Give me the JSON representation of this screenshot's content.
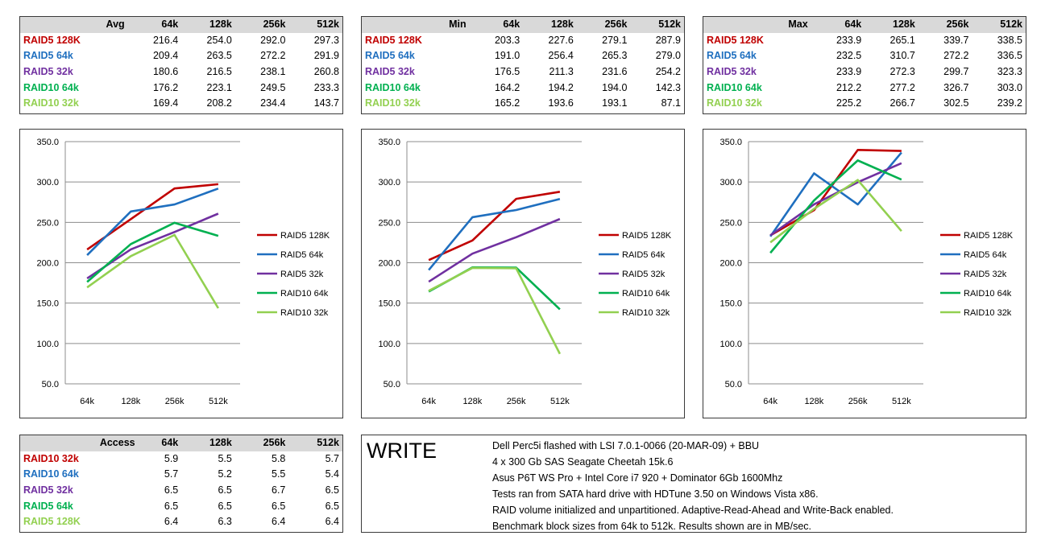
{
  "columns": [
    "64k",
    "128k",
    "256k",
    "512k"
  ],
  "colors": {
    "RAID5 128K": "#c00000",
    "RAID5 64k": "#1f6fbf",
    "RAID5 32k": "#7030a0",
    "RAID10 64k": "#00b050",
    "RAID10 32k": "#92d050"
  },
  "tables": [
    {
      "title": "Avg",
      "columns": [
        "64k",
        "128k",
        "256k",
        "512k"
      ],
      "rows": [
        {
          "label": "RAID5 128K",
          "color": "#c00000",
          "values": [
            "216.4",
            "254.0",
            "292.0",
            "297.3"
          ]
        },
        {
          "label": "RAID5 64k",
          "color": "#1f6fbf",
          "values": [
            "209.4",
            "263.5",
            "272.2",
            "291.9"
          ]
        },
        {
          "label": "RAID5 32k",
          "color": "#7030a0",
          "values": [
            "180.6",
            "216.5",
            "238.1",
            "260.8"
          ]
        },
        {
          "label": "RAID10 64k",
          "color": "#00b050",
          "values": [
            "176.2",
            "223.1",
            "249.5",
            "233.3"
          ]
        },
        {
          "label": "RAID10 32k",
          "color": "#92d050",
          "values": [
            "169.4",
            "208.2",
            "234.4",
            "143.7"
          ]
        }
      ]
    },
    {
      "title": "Min",
      "columns": [
        "64k",
        "128k",
        "256k",
        "512k"
      ],
      "rows": [
        {
          "label": "RAID5 128K",
          "color": "#c00000",
          "values": [
            "203.3",
            "227.6",
            "279.1",
            "287.9"
          ]
        },
        {
          "label": "RAID5 64k",
          "color": "#1f6fbf",
          "values": [
            "191.0",
            "256.4",
            "265.3",
            "279.0"
          ]
        },
        {
          "label": "RAID5 32k",
          "color": "#7030a0",
          "values": [
            "176.5",
            "211.3",
            "231.6",
            "254.2"
          ]
        },
        {
          "label": "RAID10 64k",
          "color": "#00b050",
          "values": [
            "164.2",
            "194.2",
            "194.0",
            "142.3"
          ]
        },
        {
          "label": "RAID10 32k",
          "color": "#92d050",
          "values": [
            "165.2",
            "193.6",
            "193.1",
            "87.1"
          ]
        }
      ]
    },
    {
      "title": "Max",
      "columns": [
        "64k",
        "128k",
        "256k",
        "512k"
      ],
      "rows": [
        {
          "label": "RAID5 128K",
          "color": "#c00000",
          "values": [
            "233.9",
            "265.1",
            "339.7",
            "338.5"
          ]
        },
        {
          "label": "RAID5 64k",
          "color": "#1f6fbf",
          "values": [
            "232.5",
            "310.7",
            "272.2",
            "336.5"
          ]
        },
        {
          "label": "RAID5 32k",
          "color": "#7030a0",
          "values": [
            "233.9",
            "272.3",
            "299.7",
            "323.3"
          ]
        },
        {
          "label": "RAID10 64k",
          "color": "#00b050",
          "values": [
            "212.2",
            "277.2",
            "326.7",
            "303.0"
          ]
        },
        {
          "label": "RAID10 32k",
          "color": "#92d050",
          "values": [
            "225.2",
            "266.7",
            "302.5",
            "239.2"
          ]
        }
      ]
    }
  ],
  "access_table": {
    "title": "Access",
    "columns": [
      "64k",
      "128k",
      "256k",
      "512k"
    ],
    "rows": [
      {
        "label": "RAID10 32k",
        "color": "#c00000",
        "values": [
          "5.9",
          "5.5",
          "5.8",
          "5.7"
        ]
      },
      {
        "label": "RAID10 64k",
        "color": "#1f6fbf",
        "values": [
          "5.7",
          "5.2",
          "5.5",
          "5.4"
        ]
      },
      {
        "label": "RAID5 32k",
        "color": "#7030a0",
        "values": [
          "6.5",
          "6.5",
          "6.7",
          "6.5"
        ]
      },
      {
        "label": "RAID5 64k",
        "color": "#00b050",
        "values": [
          "6.5",
          "6.5",
          "6.5",
          "6.5"
        ]
      },
      {
        "label": "RAID5 128K",
        "color": "#92d050",
        "values": [
          "6.4",
          "6.3",
          "6.4",
          "6.4"
        ]
      }
    ]
  },
  "chart_data": [
    {
      "type": "line",
      "title": "",
      "xlabel": "",
      "ylabel": "",
      "categories": [
        "64k",
        "128k",
        "256k",
        "512k"
      ],
      "ylim": [
        50,
        350
      ],
      "yticks": [
        "50.0",
        "100.0",
        "150.0",
        "200.0",
        "250.0",
        "300.0",
        "350.0"
      ],
      "grid": true,
      "legend": "right",
      "series": [
        {
          "name": "RAID5 128K",
          "color": "#c00000",
          "values": [
            216.4,
            254.0,
            292.0,
            297.3
          ]
        },
        {
          "name": "RAID5 64k",
          "color": "#1f6fbf",
          "values": [
            209.4,
            263.5,
            272.2,
            291.9
          ]
        },
        {
          "name": "RAID5 32k",
          "color": "#7030a0",
          "values": [
            180.6,
            216.5,
            238.1,
            260.8
          ]
        },
        {
          "name": "RAID10 64k",
          "color": "#00b050",
          "values": [
            176.2,
            223.1,
            249.5,
            233.3
          ]
        },
        {
          "name": "RAID10 32k",
          "color": "#92d050",
          "values": [
            169.4,
            208.2,
            234.4,
            143.7
          ]
        }
      ]
    },
    {
      "type": "line",
      "title": "",
      "xlabel": "",
      "ylabel": "",
      "categories": [
        "64k",
        "128k",
        "256k",
        "512k"
      ],
      "ylim": [
        50,
        350
      ],
      "yticks": [
        "50.0",
        "100.0",
        "150.0",
        "200.0",
        "250.0",
        "300.0",
        "350.0"
      ],
      "grid": true,
      "legend": "right",
      "series": [
        {
          "name": "RAID5 128K",
          "color": "#c00000",
          "values": [
            203.3,
            227.6,
            279.1,
            287.9
          ]
        },
        {
          "name": "RAID5 64k",
          "color": "#1f6fbf",
          "values": [
            191.0,
            256.4,
            265.3,
            279.0
          ]
        },
        {
          "name": "RAID5 32k",
          "color": "#7030a0",
          "values": [
            176.5,
            211.3,
            231.6,
            254.2
          ]
        },
        {
          "name": "RAID10 64k",
          "color": "#00b050",
          "values": [
            164.2,
            194.2,
            194.0,
            142.3
          ]
        },
        {
          "name": "RAID10 32k",
          "color": "#92d050",
          "values": [
            165.2,
            193.6,
            193.1,
            87.1
          ]
        }
      ]
    },
    {
      "type": "line",
      "title": "",
      "xlabel": "",
      "ylabel": "",
      "categories": [
        "64k",
        "128k",
        "256k",
        "512k"
      ],
      "ylim": [
        50,
        350
      ],
      "yticks": [
        "50.0",
        "100.0",
        "150.0",
        "200.0",
        "250.0",
        "300.0",
        "350.0"
      ],
      "grid": true,
      "legend": "right",
      "series": [
        {
          "name": "RAID5 128K",
          "color": "#c00000",
          "values": [
            233.9,
            265.1,
            339.7,
            338.5
          ]
        },
        {
          "name": "RAID5 64k",
          "color": "#1f6fbf",
          "values": [
            232.5,
            310.7,
            272.2,
            336.5
          ]
        },
        {
          "name": "RAID5 32k",
          "color": "#7030a0",
          "values": [
            233.9,
            272.3,
            299.7,
            323.3
          ]
        },
        {
          "name": "RAID10 64k",
          "color": "#00b050",
          "values": [
            212.2,
            277.2,
            326.7,
            303.0
          ]
        },
        {
          "name": "RAID10 32k",
          "color": "#92d050",
          "values": [
            225.2,
            266.7,
            302.5,
            239.2
          ]
        }
      ]
    }
  ],
  "info": {
    "title": "WRITE",
    "lines": [
      "Dell Perc5i flashed with LSI 7.0.1-0066 (20-MAR-09) + BBU",
      "4 x 300 Gb SAS Seagate Cheetah 15k.6",
      "Asus P6T WS Pro + Intel Core i7 920 + Dominator 6Gb 1600Mhz",
      "Tests ran from SATA hard drive with HDTune 3.50 on Windows Vista x86.",
      "RAID volume initialized and unpartitioned. Adaptive-Read-Ahead and Write-Back enabled.",
      "Benchmark block sizes from 64k to 512k. Results shown are in MB/sec."
    ]
  }
}
